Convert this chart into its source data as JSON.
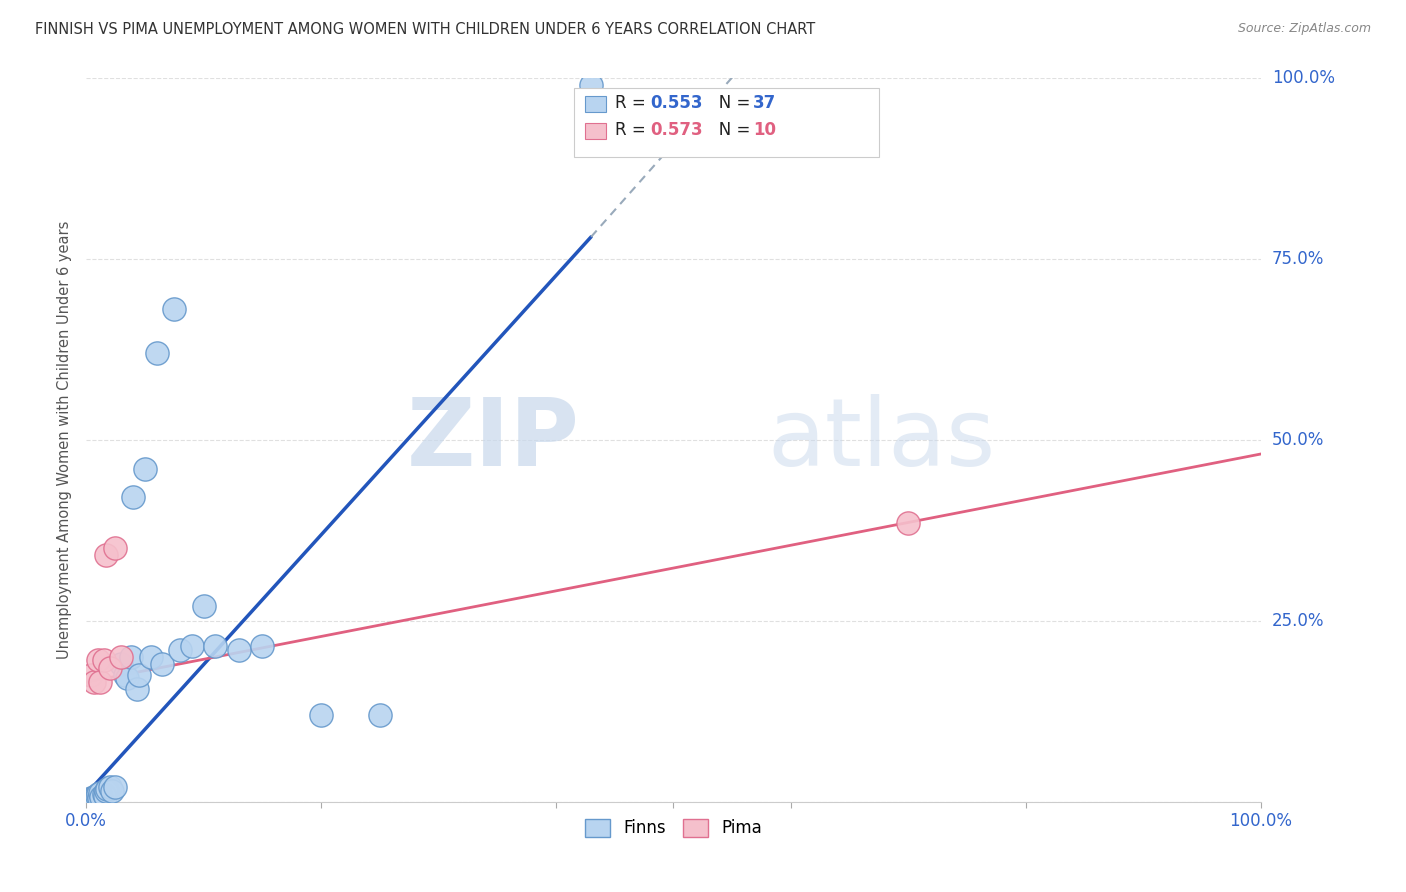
{
  "title": "FINNISH VS PIMA UNEMPLOYMENT AMONG WOMEN WITH CHILDREN UNDER 6 YEARS CORRELATION CHART",
  "source": "Source: ZipAtlas.com",
  "ylabel": "Unemployment Among Women with Children Under 6 years",
  "xlim": [
    0.0,
    1.0
  ],
  "ylim": [
    0.0,
    1.0
  ],
  "background_color": "#ffffff",
  "grid_color": "#e0e0e0",
  "watermark_zip": "ZIP",
  "watermark_atlas": "atlas",
  "finns_color": "#b8d4f0",
  "finns_edge_color": "#6699cc",
  "pima_color": "#f5c0cc",
  "pima_edge_color": "#e07090",
  "finns_R": "0.553",
  "finns_N": "37",
  "pima_R": "0.573",
  "pima_N": "10",
  "legend_label_finns": "Finns",
  "legend_label_pima": "Pima",
  "finns_line_color": "#2255bb",
  "pima_line_color": "#e06080",
  "dashed_line_color": "#99aabb",
  "finns_x": [
    0.004,
    0.006,
    0.007,
    0.008,
    0.009,
    0.01,
    0.011,
    0.012,
    0.013,
    0.015,
    0.016,
    0.017,
    0.018,
    0.02,
    0.022,
    0.025,
    0.03,
    0.033,
    0.035,
    0.038,
    0.04,
    0.043,
    0.045,
    0.05,
    0.055,
    0.06,
    0.065,
    0.075,
    0.08,
    0.09,
    0.1,
    0.11,
    0.13,
    0.15,
    0.2,
    0.25,
    0.43
  ],
  "finns_y": [
    0.005,
    0.003,
    0.007,
    0.006,
    0.008,
    0.01,
    0.005,
    0.012,
    0.006,
    0.01,
    0.008,
    0.015,
    0.018,
    0.02,
    0.015,
    0.02,
    0.19,
    0.175,
    0.17,
    0.2,
    0.42,
    0.155,
    0.175,
    0.46,
    0.2,
    0.62,
    0.19,
    0.68,
    0.21,
    0.215,
    0.27,
    0.215,
    0.21,
    0.215,
    0.12,
    0.12,
    0.99
  ],
  "pima_x": [
    0.004,
    0.007,
    0.01,
    0.012,
    0.015,
    0.017,
    0.02,
    0.025,
    0.03,
    0.7
  ],
  "pima_y": [
    0.175,
    0.165,
    0.195,
    0.165,
    0.195,
    0.34,
    0.185,
    0.35,
    0.2,
    0.385
  ],
  "finns_trendline_x": [
    0.0,
    0.43
  ],
  "finns_trendline_y": [
    0.01,
    0.78
  ],
  "dashed_line_x": [
    0.43,
    0.55
  ],
  "dashed_line_y": [
    0.78,
    1.0
  ],
  "pima_trendline_x": [
    0.0,
    1.0
  ],
  "pima_trendline_y": [
    0.165,
    0.48
  ],
  "tick_color": "#3366cc",
  "tick_fontsize": 12,
  "right_ytick_labels": [
    "100.0%",
    "75.0%",
    "50.0%",
    "25.0%"
  ],
  "right_ytick_positions": [
    1.0,
    0.75,
    0.5,
    0.25
  ]
}
